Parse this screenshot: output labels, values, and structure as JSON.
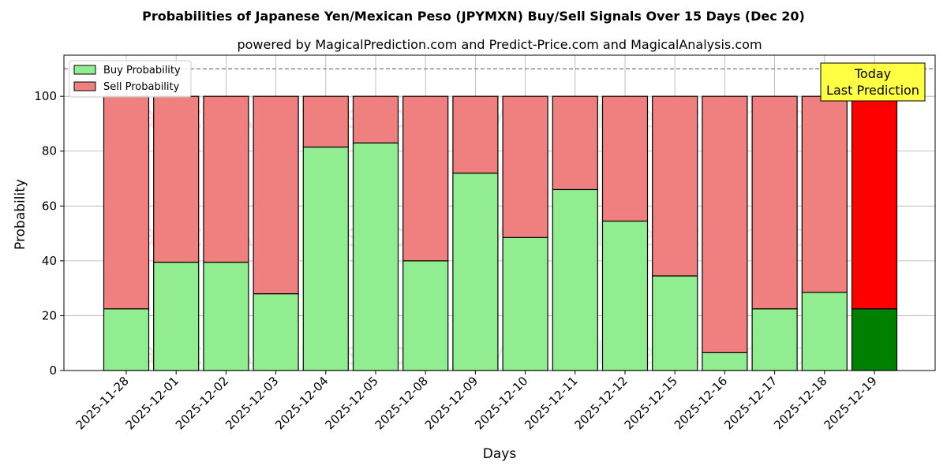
{
  "chart_data": {
    "type": "bar",
    "stacked": true,
    "title": "Probabilities of Japanese Yen/Mexican Peso (JPYMXN) Buy/Sell Signals Over 15 Days (Dec 20)",
    "subtitle": "powered by MagicalPrediction.com and Predict-Price.com and MagicalAnalysis.com",
    "xlabel": "Days",
    "ylabel": "Probability",
    "ylim": [
      0,
      115
    ],
    "yticks": [
      0,
      20,
      40,
      60,
      80,
      100
    ],
    "grid": true,
    "legend_position": "top-left",
    "reference_line": 110,
    "categories": [
      "2025-11-28",
      "2025-12-01",
      "2025-12-02",
      "2025-12-03",
      "2025-12-04",
      "2025-12-05",
      "2025-12-08",
      "2025-12-09",
      "2025-12-10",
      "2025-12-11",
      "2025-12-12",
      "2025-12-15",
      "2025-12-16",
      "2025-12-17",
      "2025-12-18",
      "2025-12-19"
    ],
    "series": [
      {
        "name": "Buy Probability",
        "color": "#90ee90",
        "highlight_color": "#008000",
        "values": [
          22.5,
          39.5,
          39.5,
          28,
          81.5,
          83,
          40,
          72,
          48.5,
          66,
          54.5,
          34.5,
          6.5,
          22.5,
          28.5,
          22.5
        ]
      },
      {
        "name": "Sell Probability",
        "color": "#f08080",
        "highlight_color": "#ff0000",
        "values": [
          77.5,
          60.5,
          60.5,
          72,
          18.5,
          17,
          60,
          28,
          51.5,
          34,
          45.5,
          65.5,
          93.5,
          77.5,
          71.5,
          77.5
        ]
      }
    ],
    "highlight_index": 15,
    "annotation": {
      "line1": "Today",
      "line2": "Last Prediction",
      "box_color": "#ffff44"
    },
    "watermarks": [
      "MagicalAnalysis.com",
      "MagicalPrediction.com"
    ]
  }
}
